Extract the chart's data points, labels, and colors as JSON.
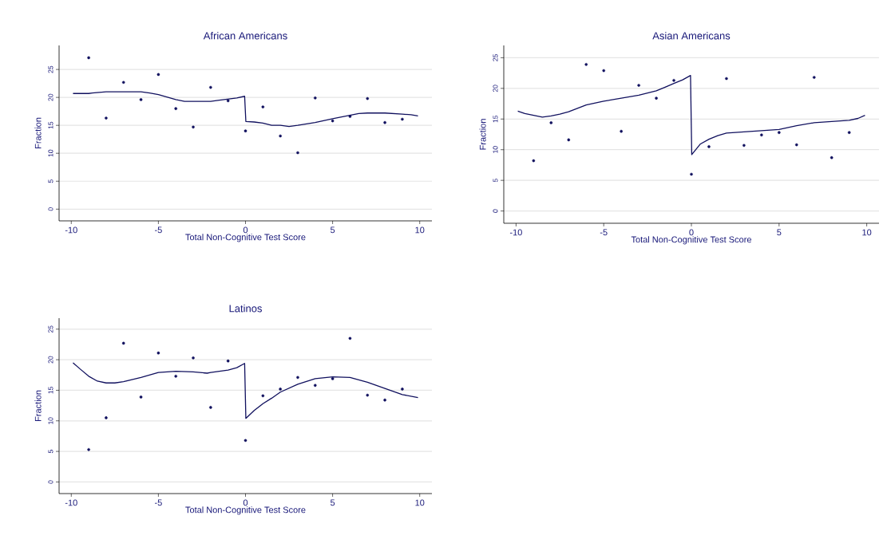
{
  "chart_data": [
    {
      "type": "scatter",
      "title": "African Americans",
      "xlabel": "Total Non-Cognitive Test Score",
      "ylabel": "Fraction",
      "xlim": [
        -10.7,
        10.7
      ],
      "ylim": [
        -2.1,
        29.3
      ],
      "xticks": [
        -10,
        -5,
        0,
        5,
        10
      ],
      "yticks": [
        0,
        5,
        10,
        15,
        20,
        25
      ],
      "grid": "y",
      "series": [
        {
          "marker": "circle",
          "color": "#10105e",
          "x": [
            -9,
            -8,
            -7,
            -6,
            -5,
            -4,
            -3,
            -2,
            -1,
            0,
            1,
            2,
            3,
            4,
            5,
            6,
            7,
            8,
            9
          ],
          "values": [
            27.1,
            16.3,
            22.7,
            19.6,
            24.1,
            18.0,
            14.7,
            21.8,
            19.4,
            14.0,
            18.3,
            13.1,
            10.1,
            19.9,
            15.8,
            16.6,
            19.8,
            15.5,
            16.1
          ]
        },
        {
          "type": "line",
          "marker": "none",
          "color": "#10105e",
          "x": [
            -9.9,
            -9,
            -8.8,
            -8,
            -6,
            -5.5,
            -5,
            -4,
            -3.5,
            -3,
            -2,
            -1.5,
            -1,
            -0.5,
            -0.05,
            0.02,
            0.5,
            1,
            1.5,
            2,
            2.5,
            3,
            4,
            5,
            6,
            6.5,
            7,
            8,
            9,
            9.5,
            9.9
          ],
          "values": [
            20.7,
            20.7,
            20.8,
            21.0,
            21.0,
            20.8,
            20.5,
            19.6,
            19.3,
            19.3,
            19.3,
            19.5,
            19.7,
            19.9,
            20.2,
            15.7,
            15.6,
            15.4,
            15.0,
            15.0,
            14.8,
            15.0,
            15.5,
            16.2,
            16.8,
            17.1,
            17.2,
            17.2,
            17.0,
            16.9,
            16.7
          ]
        }
      ]
    },
    {
      "type": "scatter",
      "title": "Asian Americans",
      "xlabel": "Total Non-Cognitive Test Score",
      "ylabel": "Fraction",
      "xlim": [
        -10.7,
        10.7
      ],
      "ylim": [
        -2.0,
        27.0
      ],
      "xticks": [
        -10,
        -5,
        0,
        5,
        10
      ],
      "yticks": [
        0,
        5,
        10,
        15,
        20,
        25
      ],
      "grid": "y",
      "series": [
        {
          "marker": "circle",
          "color": "#10105e",
          "x": [
            -9,
            -8,
            -7,
            -6,
            -5,
            -4,
            -3,
            -2,
            -1,
            0,
            1,
            2,
            3,
            4,
            5,
            6,
            7,
            8,
            9
          ],
          "values": [
            8.2,
            14.4,
            11.6,
            23.9,
            22.9,
            13.0,
            20.5,
            18.4,
            21.3,
            6.0,
            10.5,
            21.6,
            10.7,
            12.4,
            12.8,
            10.8,
            21.8,
            8.7,
            12.8
          ]
        },
        {
          "type": "line",
          "marker": "none",
          "color": "#10105e",
          "x": [
            -9.9,
            -9.5,
            -9,
            -8.5,
            -8,
            -7.5,
            -7,
            -6,
            -5,
            -4,
            -3,
            -2,
            -1.5,
            -1,
            -0.5,
            -0.05,
            0.02,
            0.5,
            1,
            1.5,
            2,
            3,
            4,
            5,
            6,
            7,
            8,
            9,
            9.5,
            9.9
          ],
          "values": [
            16.3,
            15.9,
            15.6,
            15.3,
            15.5,
            15.8,
            16.2,
            17.3,
            17.9,
            18.4,
            18.9,
            19.6,
            20.2,
            20.8,
            21.4,
            22.1,
            9.2,
            10.9,
            11.7,
            12.3,
            12.7,
            12.9,
            13.1,
            13.3,
            13.9,
            14.4,
            14.6,
            14.8,
            15.1,
            15.6
          ]
        }
      ]
    },
    {
      "type": "scatter",
      "title": "Latinos",
      "xlabel": "Total Non-Cognitive Test Score",
      "ylabel": "Fraction",
      "xlim": [
        -10.7,
        10.7
      ],
      "ylim": [
        -1.9,
        26.8
      ],
      "xticks": [
        -10,
        -5,
        0,
        5,
        10
      ],
      "yticks": [
        0,
        5,
        10,
        15,
        20,
        25
      ],
      "grid": "y",
      "series": [
        {
          "marker": "circle",
          "color": "#10105e",
          "x": [
            -9,
            -8,
            -7,
            -6,
            -5,
            -4,
            -3,
            -2,
            -1,
            0,
            1,
            2,
            3,
            4,
            5,
            6,
            7,
            8,
            9
          ],
          "values": [
            5.3,
            10.5,
            22.7,
            13.9,
            21.1,
            17.3,
            20.3,
            12.2,
            19.8,
            6.8,
            14.1,
            15.2,
            17.1,
            15.8,
            16.9,
            23.5,
            14.2,
            13.4,
            15.2
          ]
        },
        {
          "type": "line",
          "marker": "none",
          "color": "#10105e",
          "x": [
            -9.9,
            -9.5,
            -9,
            -8.5,
            -8,
            -7.5,
            -7,
            -6,
            -5,
            -4,
            -3,
            -2.2,
            -2,
            -1,
            -0.5,
            -0.05,
            0.02,
            0.5,
            1,
            1.5,
            2,
            3,
            4,
            5,
            6,
            7,
            8,
            9,
            9.9
          ],
          "values": [
            19.5,
            18.5,
            17.3,
            16.5,
            16.2,
            16.2,
            16.4,
            17.1,
            17.9,
            18.1,
            18.0,
            17.8,
            17.9,
            18.3,
            18.7,
            19.4,
            10.4,
            11.7,
            12.8,
            13.7,
            14.7,
            16.0,
            16.9,
            17.2,
            17.1,
            16.3,
            15.3,
            14.3,
            13.8
          ]
        }
      ]
    }
  ]
}
